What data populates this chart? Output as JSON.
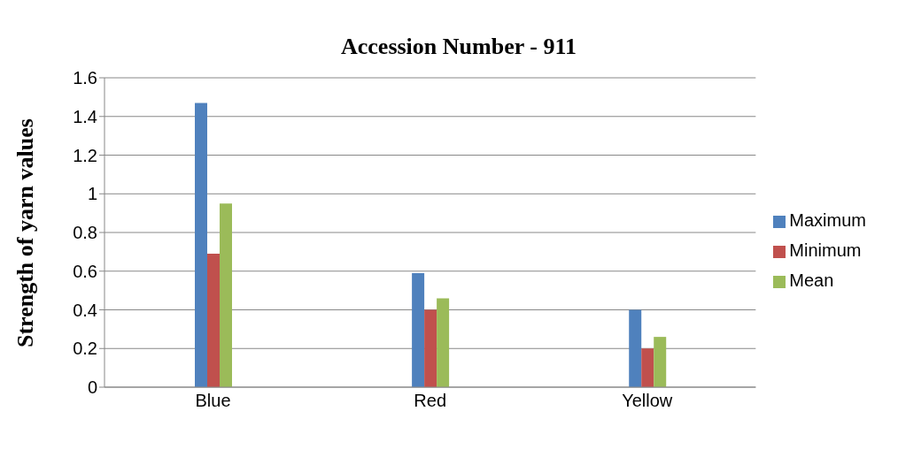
{
  "chart_data": {
    "type": "bar",
    "title": "Accession Number - 911",
    "ylabel": "Strength of yarn values",
    "categories": [
      "Blue",
      "Red",
      "Yellow"
    ],
    "series": [
      {
        "name": "Maximum",
        "color": "#4f81bd",
        "values": [
          1.47,
          0.59,
          0.4
        ]
      },
      {
        "name": "Minimum",
        "color": "#c0504d",
        "values": [
          0.69,
          0.4,
          0.2
        ]
      },
      {
        "name": "Mean",
        "color": "#9bbb59",
        "values": [
          0.95,
          0.46,
          0.26
        ]
      }
    ],
    "ylim": [
      0,
      1.6
    ],
    "yticks": [
      0,
      0.2,
      0.4,
      0.6,
      0.8,
      1,
      1.2,
      1.4,
      1.6
    ],
    "grid": "y",
    "legend": "right"
  }
}
